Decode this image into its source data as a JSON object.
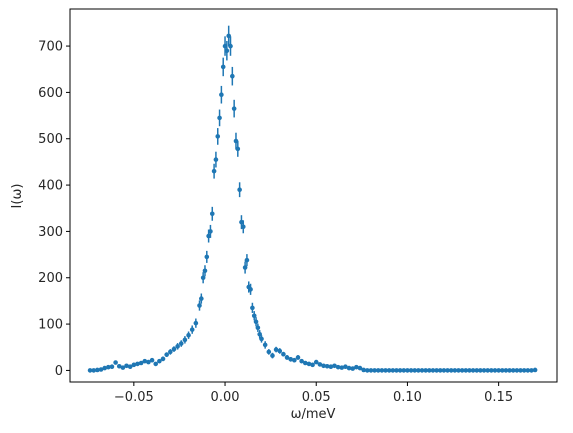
{
  "chart_data": {
    "type": "scatter",
    "style": "errorbar",
    "marker_color": "#1f77b4",
    "xlabel": "ω/meV",
    "ylabel": "I(ω)",
    "xlim": [
      -0.085,
      0.182
    ],
    "ylim": [
      -25,
      780
    ],
    "x_ticks": [
      -0.05,
      0.0,
      0.05,
      0.1,
      0.15
    ],
    "x_tick_labels": [
      "−0.05",
      "0.00",
      "0.05",
      "0.10",
      "0.15"
    ],
    "y_ticks": [
      0,
      100,
      200,
      300,
      400,
      500,
      600,
      700
    ],
    "y_tick_labels": [
      "0",
      "100",
      "200",
      "300",
      "400",
      "500",
      "600",
      "700"
    ],
    "grid": false,
    "legend": "none",
    "points": [
      [
        -0.074,
        0,
        2
      ],
      [
        -0.072,
        0,
        2
      ],
      [
        -0.07,
        1,
        2
      ],
      [
        -0.068,
        2,
        2
      ],
      [
        -0.066,
        5,
        3
      ],
      [
        -0.064,
        7,
        3
      ],
      [
        -0.062,
        8,
        3
      ],
      [
        -0.06,
        17,
        4
      ],
      [
        -0.058,
        9,
        3
      ],
      [
        -0.056,
        6,
        3
      ],
      [
        -0.054,
        10,
        3
      ],
      [
        -0.052,
        8,
        3
      ],
      [
        -0.05,
        12,
        3
      ],
      [
        -0.048,
        14,
        4
      ],
      [
        -0.046,
        16,
        4
      ],
      [
        -0.044,
        20,
        4
      ],
      [
        -0.042,
        18,
        4
      ],
      [
        -0.04,
        22,
        4
      ],
      [
        -0.038,
        14,
        4
      ],
      [
        -0.036,
        20,
        4
      ],
      [
        -0.034,
        25,
        5
      ],
      [
        -0.032,
        34,
        5
      ],
      [
        -0.03,
        40,
        6
      ],
      [
        -0.028,
        46,
        6
      ],
      [
        -0.026,
        52,
        7
      ],
      [
        -0.024,
        58,
        7
      ],
      [
        -0.022,
        66,
        8
      ],
      [
        -0.02,
        76,
        8
      ],
      [
        -0.018,
        88,
        9
      ],
      [
        -0.016,
        102,
        10
      ],
      [
        -0.014,
        140,
        11
      ],
      [
        -0.013,
        155,
        11
      ],
      [
        -0.012,
        200,
        12
      ],
      [
        -0.011,
        215,
        12
      ],
      [
        -0.01,
        245,
        13
      ],
      [
        -0.009,
        290,
        14
      ],
      [
        -0.008,
        300,
        14
      ],
      [
        -0.007,
        338,
        15
      ],
      [
        -0.006,
        430,
        16
      ],
      [
        -0.005,
        455,
        17
      ],
      [
        -0.004,
        505,
        18
      ],
      [
        -0.003,
        545,
        18
      ],
      [
        -0.002,
        595,
        19
      ],
      [
        -0.001,
        655,
        20
      ],
      [
        0.0,
        700,
        21
      ],
      [
        0.001,
        690,
        21
      ],
      [
        0.002,
        722,
        22
      ],
      [
        0.003,
        700,
        21
      ],
      [
        0.004,
        635,
        20
      ],
      [
        0.005,
        565,
        19
      ],
      [
        0.006,
        495,
        18
      ],
      [
        0.007,
        478,
        17
      ],
      [
        0.008,
        390,
        16
      ],
      [
        0.009,
        320,
        15
      ],
      [
        0.01,
        310,
        14
      ],
      [
        0.011,
        222,
        13
      ],
      [
        0.012,
        238,
        13
      ],
      [
        0.013,
        180,
        12
      ],
      [
        0.014,
        175,
        12
      ],
      [
        0.015,
        135,
        11
      ],
      [
        0.016,
        118,
        10
      ],
      [
        0.017,
        105,
        10
      ],
      [
        0.018,
        92,
        9
      ],
      [
        0.019,
        78,
        9
      ],
      [
        0.02,
        68,
        8
      ],
      [
        0.022,
        55,
        8
      ],
      [
        0.024,
        40,
        6
      ],
      [
        0.026,
        32,
        6
      ],
      [
        0.028,
        45,
        6
      ],
      [
        0.03,
        42,
        6
      ],
      [
        0.032,
        35,
        5
      ],
      [
        0.034,
        28,
        5
      ],
      [
        0.036,
        24,
        5
      ],
      [
        0.038,
        22,
        4
      ],
      [
        0.04,
        28,
        5
      ],
      [
        0.042,
        20,
        4
      ],
      [
        0.044,
        16,
        4
      ],
      [
        0.046,
        14,
        4
      ],
      [
        0.048,
        12,
        4
      ],
      [
        0.05,
        18,
        4
      ],
      [
        0.052,
        13,
        4
      ],
      [
        0.054,
        10,
        3
      ],
      [
        0.056,
        9,
        3
      ],
      [
        0.058,
        8,
        3
      ],
      [
        0.06,
        10,
        3
      ],
      [
        0.062,
        7,
        3
      ],
      [
        0.064,
        6,
        3
      ],
      [
        0.066,
        8,
        3
      ],
      [
        0.068,
        5,
        3
      ],
      [
        0.07,
        4,
        3
      ],
      [
        0.072,
        7,
        3
      ],
      [
        0.074,
        5,
        3
      ],
      [
        0.076,
        1,
        2
      ],
      [
        0.078,
        0,
        1
      ],
      [
        0.08,
        0,
        1
      ],
      [
        0.082,
        0,
        1
      ],
      [
        0.084,
        0,
        1
      ],
      [
        0.086,
        0,
        1
      ],
      [
        0.088,
        0,
        1
      ],
      [
        0.09,
        0,
        1
      ],
      [
        0.092,
        0,
        1
      ],
      [
        0.094,
        0,
        1
      ],
      [
        0.096,
        0,
        1
      ],
      [
        0.098,
        0,
        1
      ],
      [
        0.1,
        0,
        1
      ],
      [
        0.102,
        0,
        1
      ],
      [
        0.104,
        0,
        1
      ],
      [
        0.106,
        0,
        1
      ],
      [
        0.108,
        0,
        1
      ],
      [
        0.11,
        0,
        1
      ],
      [
        0.112,
        0,
        1
      ],
      [
        0.114,
        0,
        1
      ],
      [
        0.116,
        0,
        1
      ],
      [
        0.118,
        0,
        1
      ],
      [
        0.12,
        0,
        1
      ],
      [
        0.122,
        0,
        1
      ],
      [
        0.124,
        0,
        1
      ],
      [
        0.126,
        0,
        1
      ],
      [
        0.128,
        0,
        1
      ],
      [
        0.13,
        0,
        1
      ],
      [
        0.132,
        0,
        1
      ],
      [
        0.134,
        0,
        1
      ],
      [
        0.136,
        0,
        1
      ],
      [
        0.138,
        0,
        1
      ],
      [
        0.14,
        0,
        1
      ],
      [
        0.142,
        0,
        1
      ],
      [
        0.144,
        0,
        1
      ],
      [
        0.146,
        0,
        1
      ],
      [
        0.148,
        0,
        1
      ],
      [
        0.15,
        0,
        1
      ],
      [
        0.152,
        0,
        1
      ],
      [
        0.154,
        0,
        1
      ],
      [
        0.156,
        0,
        1
      ],
      [
        0.158,
        0,
        1
      ],
      [
        0.16,
        0,
        1
      ],
      [
        0.162,
        0,
        1
      ],
      [
        0.164,
        0,
        1
      ],
      [
        0.166,
        0,
        1
      ],
      [
        0.168,
        0,
        1
      ],
      [
        0.17,
        1,
        2
      ]
    ]
  }
}
